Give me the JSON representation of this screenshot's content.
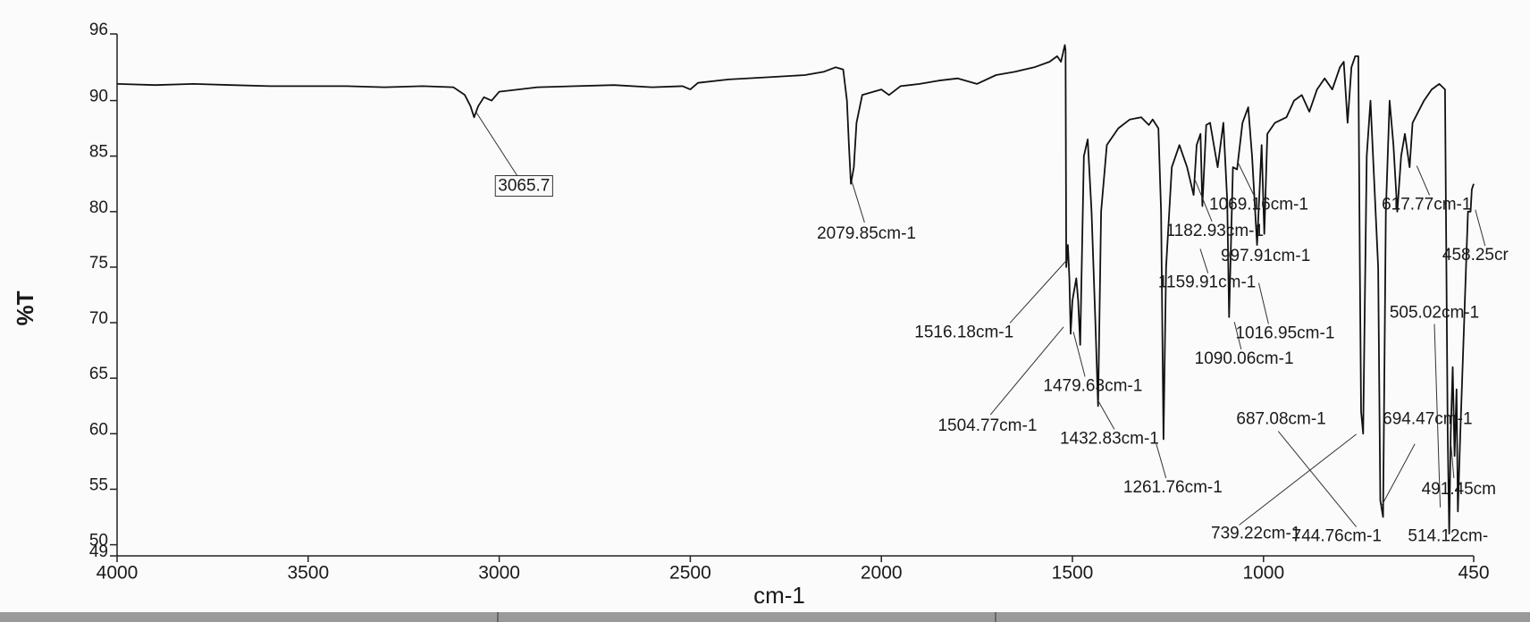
{
  "chart_data": {
    "type": "line",
    "xlabel": "cm-1",
    "ylabel": "%T",
    "x": [
      4000,
      3900,
      3800,
      3700,
      3600,
      3500,
      3400,
      3300,
      3200,
      3120,
      3090,
      3075,
      3065.7,
      3055,
      3040,
      3020,
      3000,
      2950,
      2900,
      2800,
      2700,
      2600,
      2520,
      2500,
      2480,
      2400,
      2300,
      2200,
      2150,
      2120,
      2100,
      2090,
      2085,
      2079.85,
      2072,
      2065,
      2050,
      2000,
      1980,
      1950,
      1900,
      1850,
      1800,
      1750,
      1700,
      1650,
      1600,
      1560,
      1540,
      1530,
      1520,
      1518,
      1516.18,
      1512,
      1508,
      1504.77,
      1500,
      1490,
      1485,
      1479.63,
      1470,
      1460,
      1450,
      1440,
      1432.83,
      1425,
      1410,
      1380,
      1350,
      1320,
      1300,
      1290,
      1275,
      1268,
      1261.76,
      1255,
      1240,
      1220,
      1200,
      1182.93,
      1175,
      1165,
      1159.91,
      1150,
      1140,
      1120,
      1105,
      1095,
      1090.06,
      1080,
      1069.16,
      1055,
      1040,
      1030,
      1016.95,
      1005,
      997.91,
      990,
      970,
      940,
      920,
      900,
      880,
      860,
      840,
      820,
      800,
      790,
      780,
      770,
      760,
      752,
      748,
      744.76,
      739.22,
      730,
      720,
      700,
      694.47,
      687.08,
      680,
      670,
      660,
      650,
      640,
      630,
      617.77,
      610,
      580,
      560,
      540,
      525,
      518,
      514.12,
      510,
      505.02,
      500,
      495,
      491.45,
      485,
      475,
      470,
      465,
      458.25,
      455,
      450
    ],
    "values": [
      91.5,
      91.4,
      91.5,
      91.4,
      91.3,
      91.3,
      91.3,
      91.2,
      91.3,
      91.2,
      90.5,
      89.5,
      88.5,
      89.5,
      90.3,
      90.0,
      90.8,
      91,
      91.2,
      91.3,
      91.4,
      91.2,
      91.3,
      91.0,
      91.6,
      91.9,
      92.1,
      92.3,
      92.6,
      93,
      92.8,
      90,
      86,
      82.5,
      84,
      88,
      90.5,
      91,
      90.5,
      91.3,
      91.5,
      91.8,
      92,
      91.5,
      92.3,
      92.6,
      93,
      93.5,
      94,
      93.5,
      95,
      94.5,
      75,
      77,
      74,
      69,
      72,
      74,
      72,
      68,
      85,
      86.5,
      80,
      70,
      62.5,
      80,
      86,
      87.5,
      88.3,
      88.5,
      87.8,
      88.3,
      87.5,
      80,
      59.5,
      75,
      84,
      86,
      84,
      81.5,
      86,
      87,
      80.5,
      87.8,
      88,
      84,
      88,
      81,
      70.5,
      84,
      83.8,
      88,
      89.4,
      85,
      77,
      86,
      78,
      87,
      88,
      88.5,
      90,
      90.5,
      89,
      91,
      92,
      91,
      93,
      93.5,
      88,
      93,
      94,
      94,
      75,
      62,
      60,
      85,
      90,
      75,
      54,
      52.5,
      80,
      90,
      86,
      80,
      85,
      87,
      84,
      88,
      90,
      91,
      91.5,
      91,
      60,
      51,
      60,
      66,
      58,
      64,
      53,
      60,
      70,
      75,
      80,
      80,
      82,
      82.5
    ],
    "color": "#111111",
    "xlim": [
      4000,
      450
    ],
    "ylim": [
      49,
      96
    ],
    "xticks": [
      4000,
      3500,
      3000,
      2500,
      2000,
      1500,
      1000,
      450
    ],
    "yticks": [
      96,
      90,
      85,
      80,
      75,
      70,
      65,
      60,
      55,
      50,
      49
    ],
    "annotations": [
      "3065.7",
      "2079.85cm-1",
      "1069.16cm-1",
      "617.77cm-1",
      "1182.93cm-1",
      "997.91cm-1",
      "458.25cr",
      "1159.91cm-1",
      "505.02cm-1",
      "1516.18cm-1",
      "1016.95cm-1",
      "1090.06cm-1",
      "1479.63cm-1",
      "687.08cm-1",
      "694.47cm-1",
      "1504.77cm-1",
      "1432.83cm-1",
      "1261.76cm-1",
      "491.45cm",
      "739.22cm-1",
      "744.76cm-1",
      "514.12cm-"
    ]
  }
}
